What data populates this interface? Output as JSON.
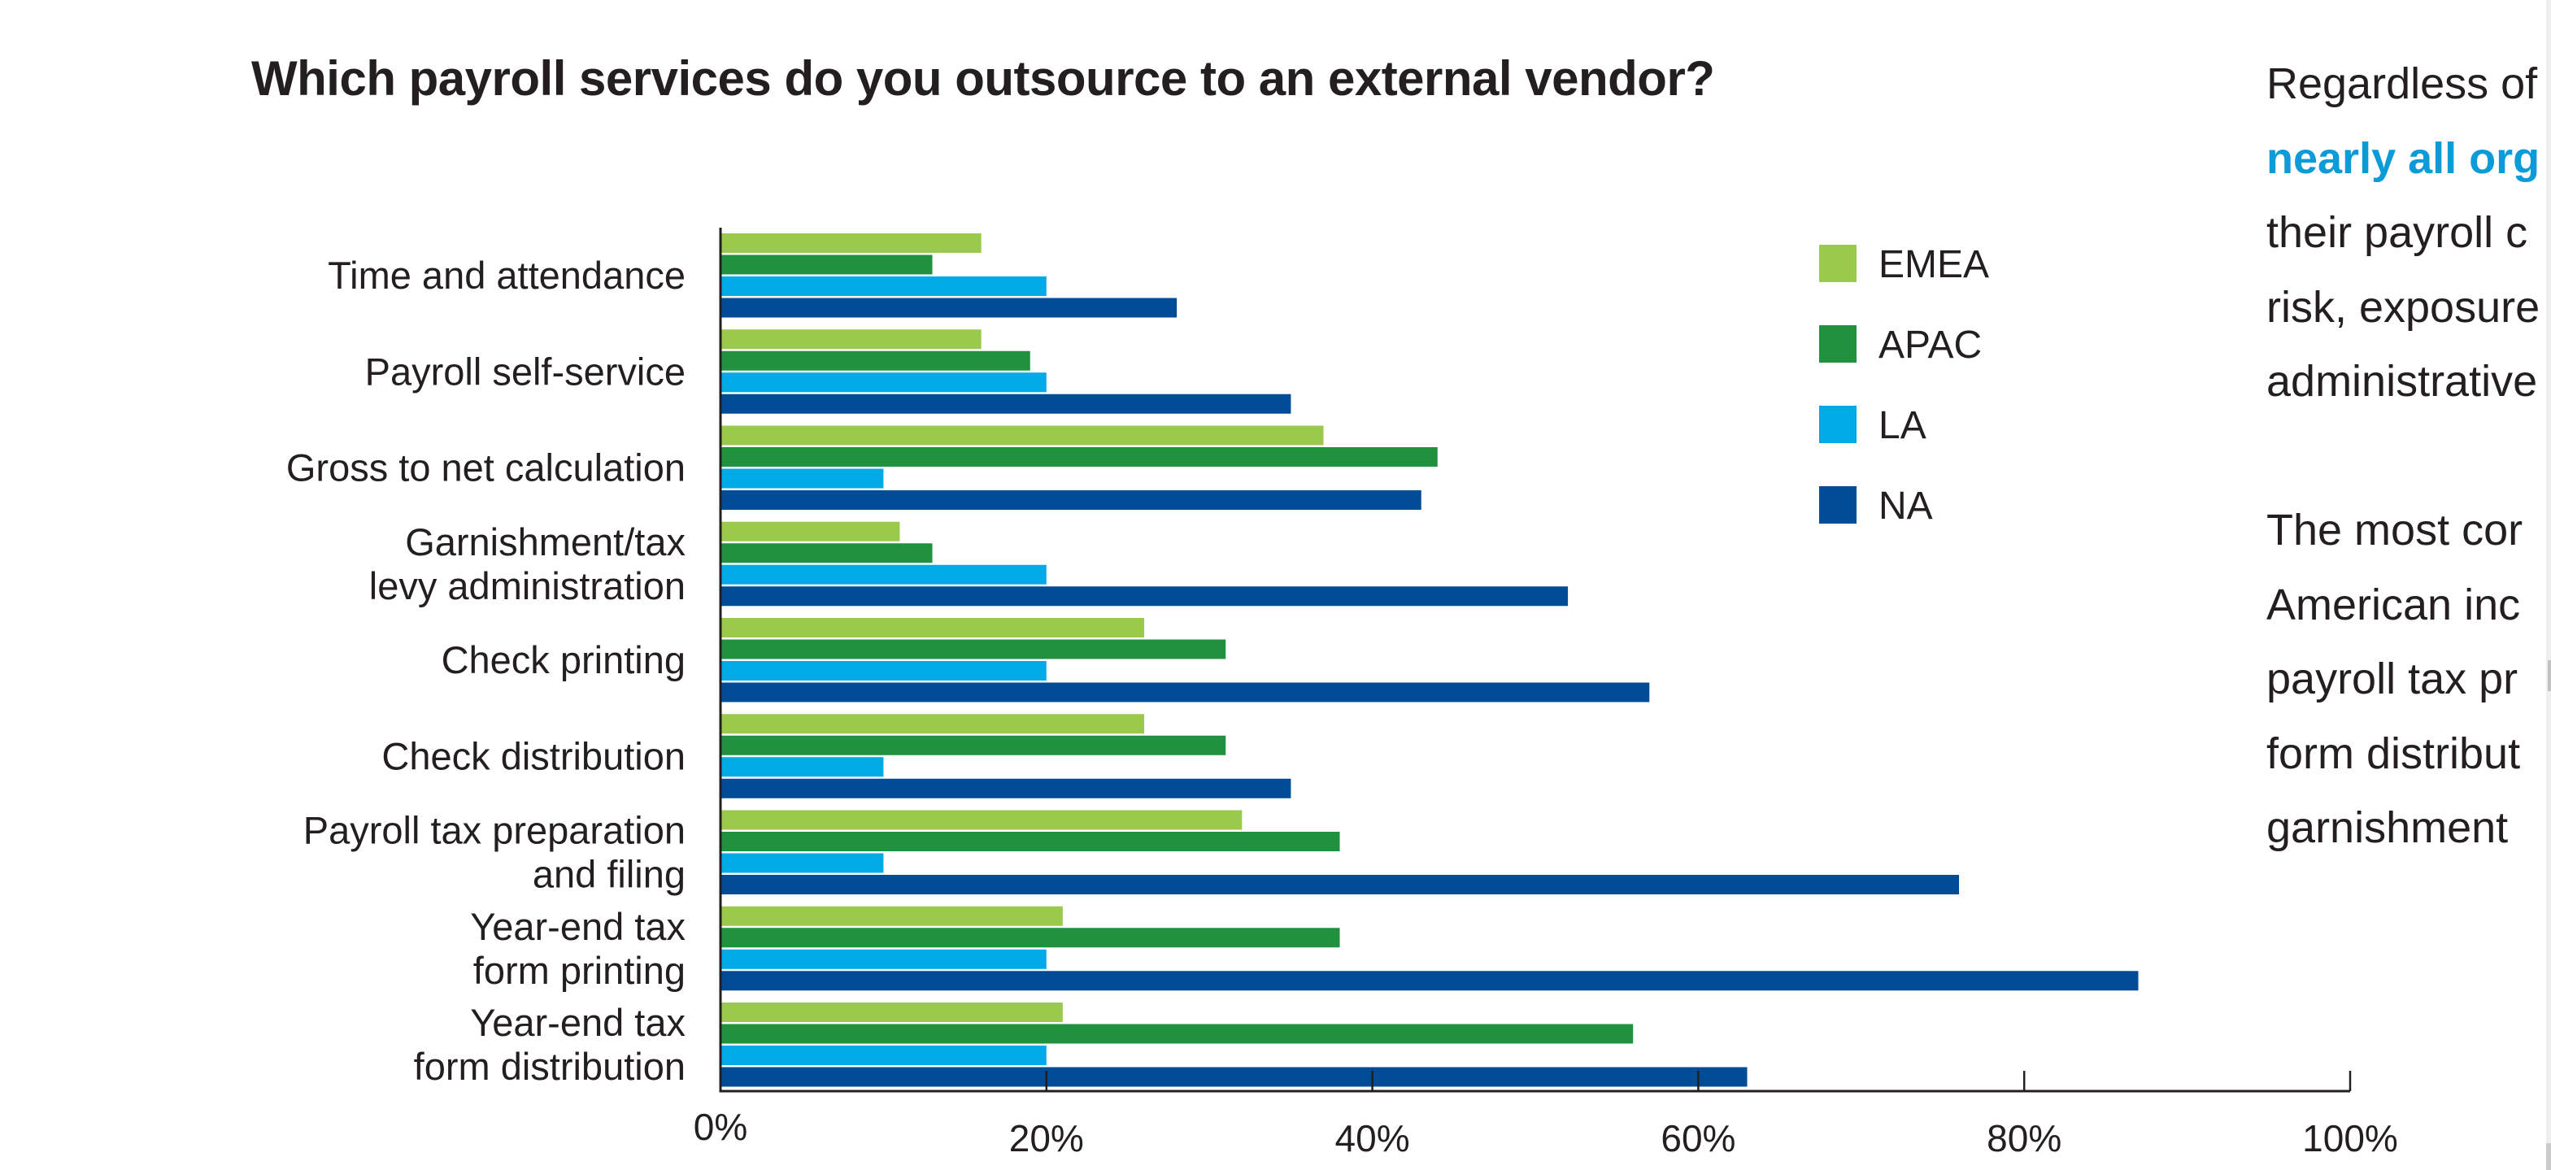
{
  "chart_data": {
    "type": "bar",
    "orientation": "horizontal",
    "title": "Which payroll services do you outsource to an external vendor?",
    "xlabel": "",
    "ylabel": "",
    "xlim": [
      0,
      100
    ],
    "x_unit": "%",
    "xticks": [
      "0%",
      "20%",
      "40%",
      "60%",
      "80%",
      "100%"
    ],
    "xtick_values": [
      0,
      20,
      40,
      60,
      80,
      100
    ],
    "grid": false,
    "legend_position": "top-right",
    "categories": [
      [
        "Time and attendance"
      ],
      [
        "Payroll self-service"
      ],
      [
        "Gross to net calculation"
      ],
      [
        "Garnishment/tax",
        "levy administration"
      ],
      [
        "Check printing"
      ],
      [
        "Check distribution"
      ],
      [
        "Payroll tax preparation",
        "and filing"
      ],
      [
        "Year-end tax",
        "form printing"
      ],
      [
        "Year-end tax",
        "form distribution"
      ]
    ],
    "series": [
      {
        "name": "EMEA",
        "color": "#9aca4b",
        "values": [
          16,
          16,
          37,
          11,
          26,
          26,
          32,
          21,
          21
        ]
      },
      {
        "name": "APAC",
        "color": "#20913f",
        "values": [
          13,
          19,
          44,
          13,
          31,
          31,
          38,
          38,
          56
        ]
      },
      {
        "name": "LA",
        "color": "#00aae6",
        "values": [
          20,
          20,
          10,
          20,
          20,
          10,
          10,
          20,
          20
        ]
      },
      {
        "name": "NA",
        "color": "#004c97",
        "values": [
          28,
          35,
          43,
          52,
          57,
          35,
          76,
          87,
          63
        ]
      }
    ]
  },
  "side_text": {
    "paragraph1": {
      "line1": "Regardless of",
      "line2_highlight": "nearly all org",
      "line3": "their payroll c",
      "line4": "risk, exposure",
      "line5": "administrative"
    },
    "paragraph2": {
      "line1": "The most cor",
      "line2": "American inc",
      "line3": "payroll tax pr",
      "line4": "form distribut",
      "line5": "garnishment"
    },
    "highlight_color": "#0a9bd8"
  }
}
